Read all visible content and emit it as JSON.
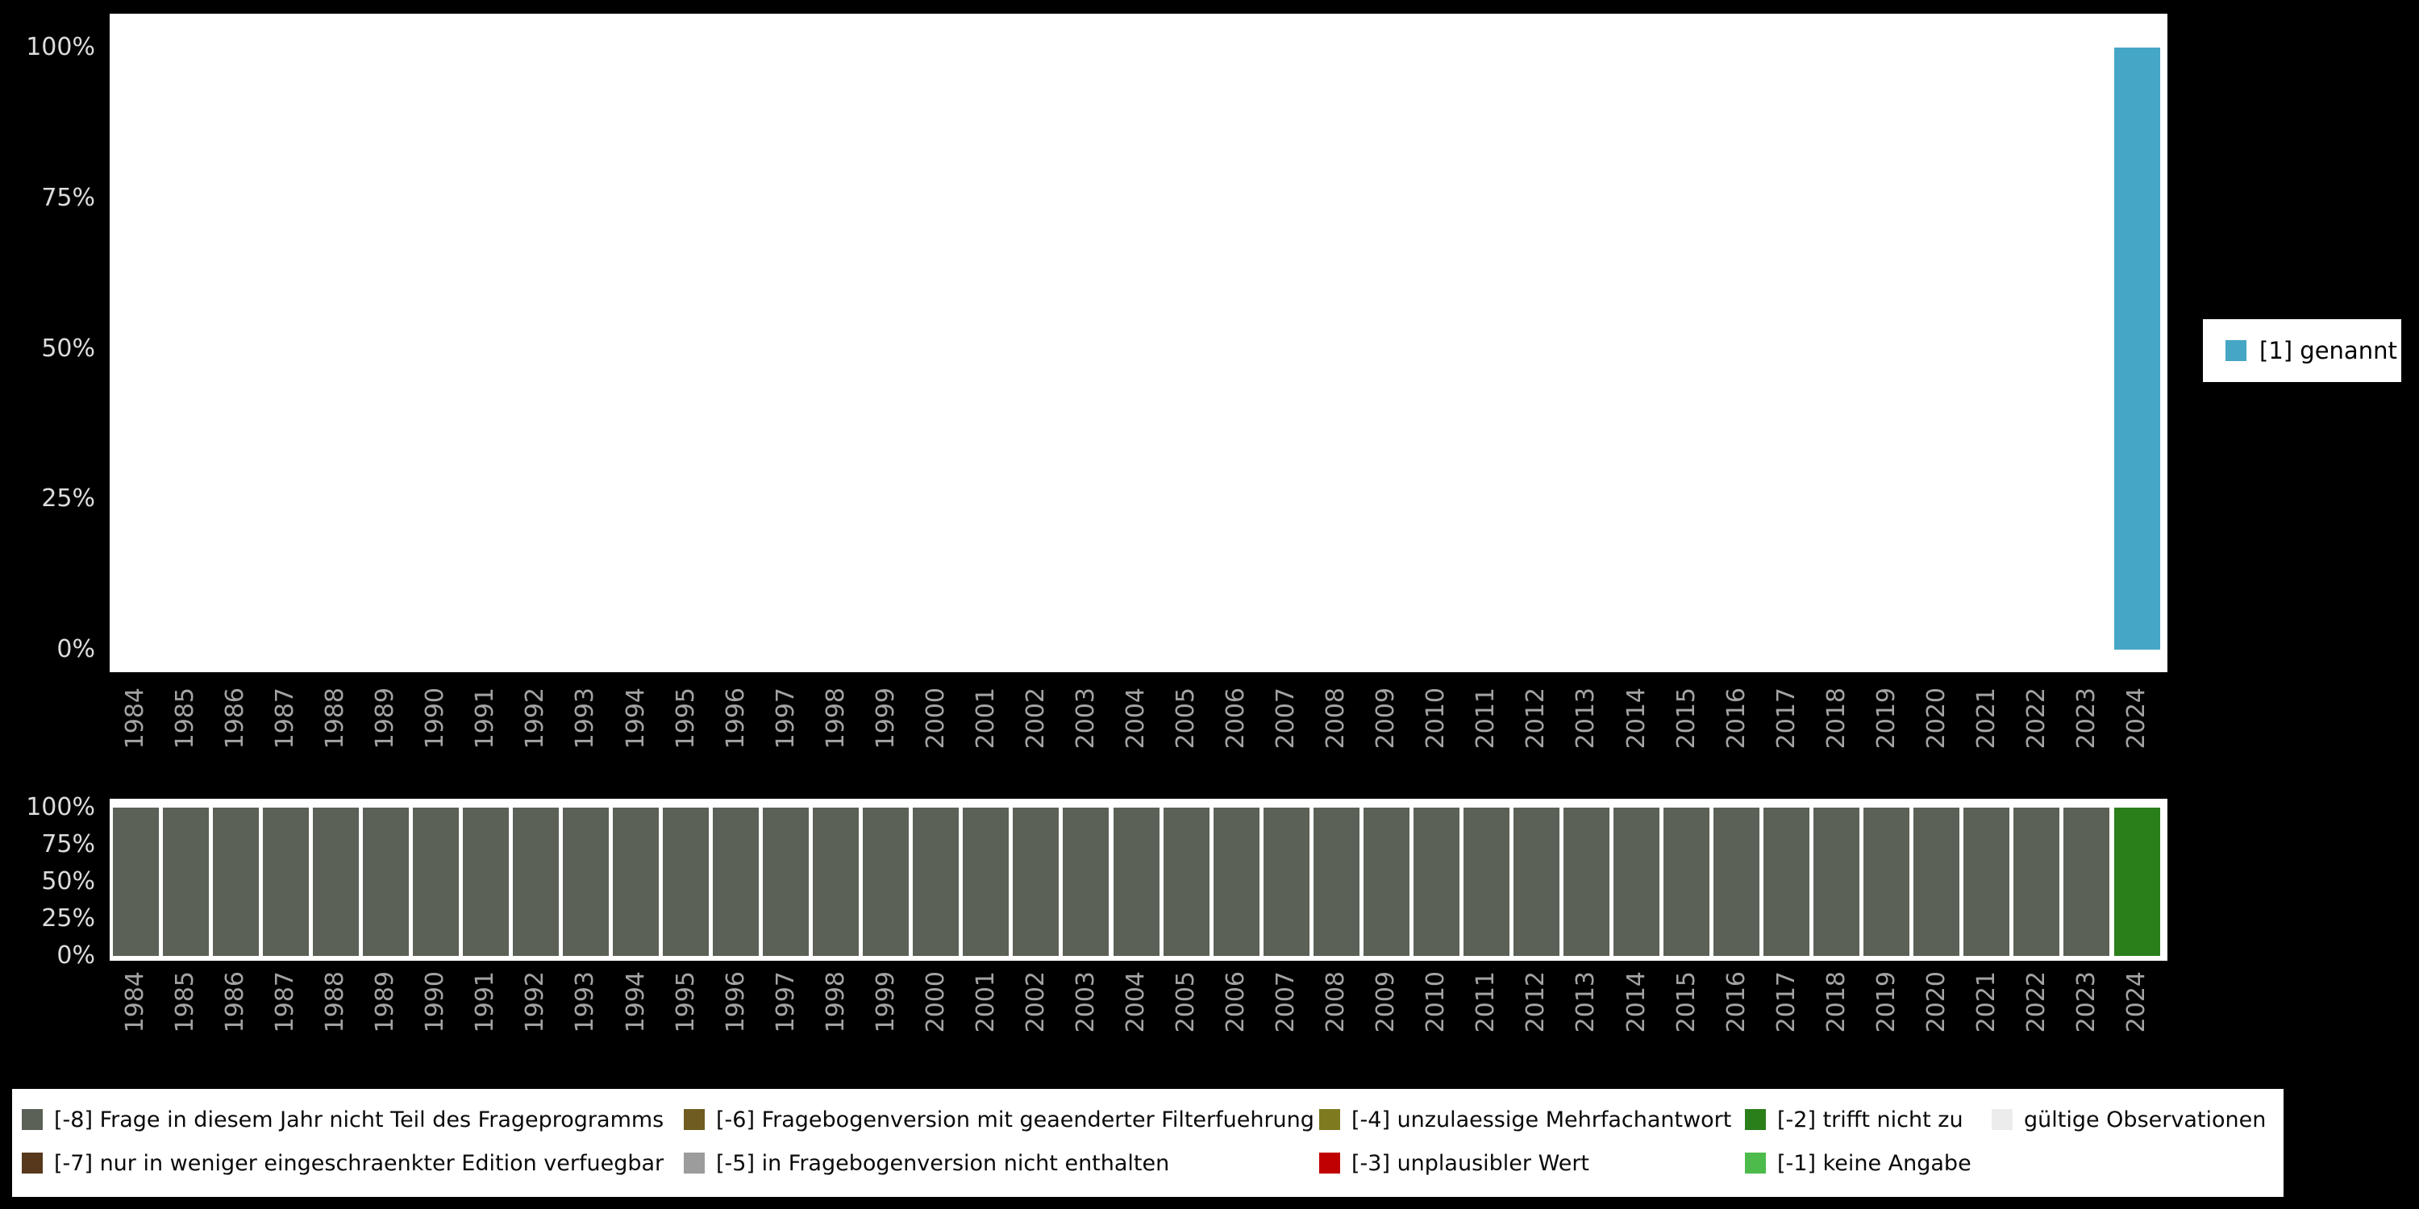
{
  "page": {
    "background": "#000000"
  },
  "chart_data": [
    {
      "type": "bar",
      "stacked": true,
      "unit": "percent",
      "title": "",
      "xlabel": "",
      "ylabel": "",
      "ylim": [
        0,
        100
      ],
      "yticks": [
        "100%",
        "75%",
        "50%",
        "25%",
        "0%"
      ],
      "grid": false,
      "legend_position": "right",
      "x": [
        "1984",
        "1985",
        "1986",
        "1987",
        "1988",
        "1989",
        "1990",
        "1991",
        "1992",
        "1993",
        "1994",
        "1995",
        "1996",
        "1997",
        "1998",
        "1999",
        "2000",
        "2001",
        "2002",
        "2003",
        "2004",
        "2005",
        "2006",
        "2007",
        "2008",
        "2009",
        "2010",
        "2011",
        "2012",
        "2013",
        "2014",
        "2015",
        "2016",
        "2017",
        "2018",
        "2019",
        "2020",
        "2021",
        "2022",
        "2023",
        "2024"
      ],
      "series": [
        {
          "name": "[1] genannt",
          "color": "#46A6C6",
          "values": [
            0,
            0,
            0,
            0,
            0,
            0,
            0,
            0,
            0,
            0,
            0,
            0,
            0,
            0,
            0,
            0,
            0,
            0,
            0,
            0,
            0,
            0,
            0,
            0,
            0,
            0,
            0,
            0,
            0,
            0,
            0,
            0,
            0,
            0,
            0,
            0,
            0,
            0,
            0,
            0,
            100
          ]
        }
      ]
    },
    {
      "type": "bar",
      "stacked": true,
      "unit": "percent",
      "title": "",
      "xlabel": "",
      "ylabel": "",
      "ylim": [
        0,
        100
      ],
      "yticks": [
        "100%",
        "75%",
        "50%",
        "25%",
        "0%"
      ],
      "grid": false,
      "legend_position": "bottom",
      "x": [
        "1984",
        "1985",
        "1986",
        "1987",
        "1988",
        "1989",
        "1990",
        "1991",
        "1992",
        "1993",
        "1994",
        "1995",
        "1996",
        "1997",
        "1998",
        "1999",
        "2000",
        "2001",
        "2002",
        "2003",
        "2004",
        "2005",
        "2006",
        "2007",
        "2008",
        "2009",
        "2010",
        "2011",
        "2012",
        "2013",
        "2014",
        "2015",
        "2016",
        "2017",
        "2018",
        "2019",
        "2020",
        "2021",
        "2022",
        "2023",
        "2024"
      ],
      "series": [
        {
          "name": "[-8] Frage in diesem Jahr nicht Teil des Frageprogramms",
          "color": "#5B6156",
          "values": [
            100,
            100,
            100,
            100,
            100,
            100,
            100,
            100,
            100,
            100,
            100,
            100,
            100,
            100,
            100,
            100,
            100,
            100,
            100,
            100,
            100,
            100,
            100,
            100,
            100,
            100,
            100,
            100,
            100,
            100,
            100,
            100,
            100,
            100,
            100,
            100,
            100,
            100,
            100,
            100,
            0
          ]
        },
        {
          "name": "[-2] trifft nicht zu",
          "color": "#2B7F1B",
          "values": [
            0,
            0,
            0,
            0,
            0,
            0,
            0,
            0,
            0,
            0,
            0,
            0,
            0,
            0,
            0,
            0,
            0,
            0,
            0,
            0,
            0,
            0,
            0,
            0,
            0,
            0,
            0,
            0,
            0,
            0,
            0,
            0,
            0,
            0,
            0,
            0,
            0,
            0,
            0,
            0,
            100
          ]
        }
      ]
    }
  ],
  "legend_right": {
    "label": "[1] genannt",
    "color": "#46A6C6"
  },
  "legend_bottom": {
    "rows": [
      [
        {
          "label": "[-8] Frage in diesem Jahr nicht Teil des Frageprogramms",
          "color": "#5B6156"
        },
        {
          "label": "[-6] Fragebogenversion mit geaenderter Filterfuehrung",
          "color": "#6F5C20"
        },
        {
          "label": "[-4] unzulaessige Mehrfachantwort",
          "color": "#7E7A1F"
        },
        {
          "label": "[-2] trifft nicht zu",
          "color": "#2B7F1B"
        },
        {
          "label": "gültige Observationen",
          "color": "#ECECEC"
        }
      ],
      [
        {
          "label": "[-7] nur in weniger eingeschraenkter Edition verfuegbar",
          "color": "#57381C"
        },
        {
          "label": "[-5] in Fragebogenversion nicht enthalten",
          "color": "#9C9C9C"
        },
        {
          "label": "[-3] unplausibler Wert",
          "color": "#C00000"
        },
        {
          "label": "[-1] keine Angabe",
          "color": "#4CBB4C"
        }
      ]
    ]
  }
}
